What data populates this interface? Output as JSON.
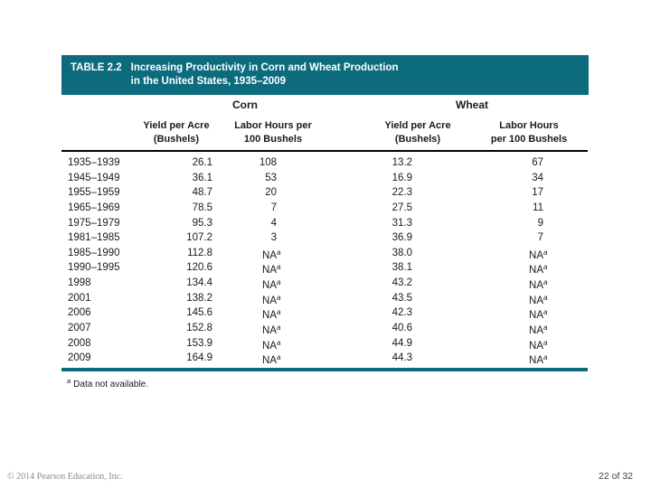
{
  "slide": {
    "title": {
      "label": "TABLE 2.2",
      "line1": "Increasing Productivity in Corn and Wheat Production",
      "line2": "in the United States, 1935–2009"
    },
    "footer": {
      "copyright": "© 2014 Pearson Education, Inc.",
      "page": "22 of 32"
    }
  },
  "table": {
    "group_headers": [
      "Corn",
      "Wheat"
    ],
    "columns": [
      {
        "line1": "Yield per Acre",
        "line2": "(Bushels)"
      },
      {
        "line1": "Labor Hours per",
        "line2": "100 Bushels"
      },
      {
        "line1": "Yield per Acre",
        "line2": "(Bushels)"
      },
      {
        "line1": "Labor Hours",
        "line2": "per 100 Bushels"
      }
    ],
    "na_value": "NA",
    "footnote": {
      "marker": "a",
      "text": "Data not available."
    },
    "rows": [
      {
        "period": "1935–1939",
        "corn_yield": "26.1",
        "corn_labor": "108",
        "wheat_yield": "13.2",
        "wheat_labor": "67"
      },
      {
        "period": "1945–1949",
        "corn_yield": "36.1",
        "corn_labor": "53",
        "wheat_yield": "16.9",
        "wheat_labor": "34"
      },
      {
        "period": "1955–1959",
        "corn_yield": "48.7",
        "corn_labor": "20",
        "wheat_yield": "22.3",
        "wheat_labor": "17"
      },
      {
        "period": "1965–1969",
        "corn_yield": "78.5",
        "corn_labor": "7",
        "wheat_yield": "27.5",
        "wheat_labor": "11"
      },
      {
        "period": "1975–1979",
        "corn_yield": "95.3",
        "corn_labor": "4",
        "wheat_yield": "31.3",
        "wheat_labor": "9"
      },
      {
        "period": "1981–1985",
        "corn_yield": "107.2",
        "corn_labor": "3",
        "wheat_yield": "36.9",
        "wheat_labor": "7"
      },
      {
        "period": "1985–1990",
        "corn_yield": "112.8",
        "corn_labor": "NA",
        "wheat_yield": "38.0",
        "wheat_labor": "NA"
      },
      {
        "period": "1990–1995",
        "corn_yield": "120.6",
        "corn_labor": "NA",
        "wheat_yield": "38.1",
        "wheat_labor": "NA"
      },
      {
        "period": "1998",
        "corn_yield": "134.4",
        "corn_labor": "NA",
        "wheat_yield": "43.2",
        "wheat_labor": "NA"
      },
      {
        "period": "2001",
        "corn_yield": "138.2",
        "corn_labor": "NA",
        "wheat_yield": "43.5",
        "wheat_labor": "NA"
      },
      {
        "period": "2006",
        "corn_yield": "145.6",
        "corn_labor": "NA",
        "wheat_yield": "42.3",
        "wheat_labor": "NA"
      },
      {
        "period": "2007",
        "corn_yield": "152.8",
        "corn_labor": "NA",
        "wheat_yield": "40.6",
        "wheat_labor": "NA"
      },
      {
        "period": "2008",
        "corn_yield": "153.9",
        "corn_labor": "NA",
        "wheat_yield": "44.9",
        "wheat_labor": "NA"
      },
      {
        "period": "2009",
        "corn_yield": "164.9",
        "corn_labor": "NA",
        "wheat_yield": "44.3",
        "wheat_labor": "NA"
      }
    ]
  },
  "colors": {
    "teal": "#0c6b7d",
    "rule_dark": "#000000"
  }
}
